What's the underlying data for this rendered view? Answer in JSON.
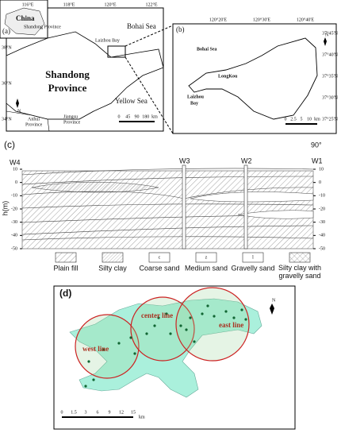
{
  "panel_a": {
    "label": "(a)",
    "inset_country": "China",
    "inset_note": "Shandong Province",
    "sea_north": "Bohai Sea",
    "bay": "Laizhou Bay",
    "province_line1": "Shandong",
    "province_line2": "Province",
    "sea_east": "Yellow Sea",
    "anhui_line1": "Anhui",
    "anhui_line2": "Province",
    "jiangsu_line1": "Jiangsu",
    "jiangsu_line2": "Province",
    "north": "N",
    "scale": [
      "0",
      "45",
      "90",
      "180",
      "km"
    ],
    "lon": [
      "116°E",
      "118°E",
      "120°E",
      "122°E"
    ],
    "lat": [
      "38°N",
      "36°N",
      "34°N"
    ]
  },
  "panel_b": {
    "label": "(b)",
    "sea": "Bohai Sea",
    "bay_line1": "Laizhou",
    "bay_line2": "Bay",
    "town": "LongKou",
    "north": "N",
    "scale": [
      "0",
      "2.5",
      "5",
      "10",
      "km"
    ],
    "lon": [
      "120°20'E",
      "120°30'E",
      "120°40'E"
    ],
    "lat": [
      "37°45'N",
      "37°40'N",
      "37°35'N",
      "37°30'N",
      "37°25'N"
    ]
  },
  "panel_c": {
    "label": "(c)",
    "angle": "90°",
    "wells": [
      "W4",
      "W3",
      "W2",
      "W1"
    ],
    "y_title": "h(m)",
    "yticks": [
      10,
      0,
      -10,
      -20,
      -30,
      -40,
      -50
    ],
    "legend": [
      {
        "label": "Plain fill"
      },
      {
        "label": "Silty clay"
      },
      {
        "symbol": "c",
        "label": "Coarse sand"
      },
      {
        "symbol": "z",
        "label": "Medium sand"
      },
      {
        "symbol": "l",
        "label": "Gravelly sand"
      },
      {
        "label": "Silty clay with gravelly sand"
      }
    ]
  },
  "panel_d": {
    "label": "(d)",
    "lines": [
      "west line",
      "center line",
      "east line"
    ],
    "north": "N",
    "scale": [
      "0",
      "1.5",
      "3",
      "6",
      "9",
      "12",
      "15"
    ],
    "unit": "km"
  }
}
